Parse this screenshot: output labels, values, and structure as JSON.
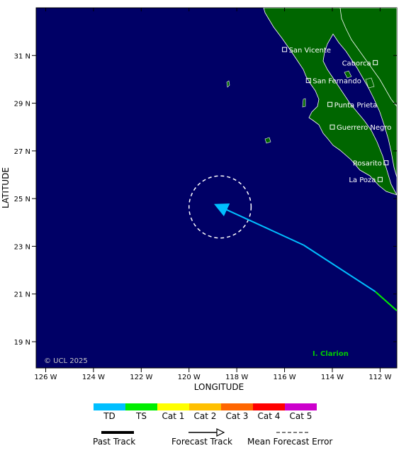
{
  "map": {
    "xlabel": "LONGITUDE",
    "ylabel": "LATITUDE",
    "copyright": "© UCL 2025",
    "ocean_color": "#000066",
    "land_color": "#006600",
    "lon_ticks": [
      {
        "value": -126,
        "label": "126 W"
      },
      {
        "value": -124,
        "label": "124 W"
      },
      {
        "value": -122,
        "label": "122 W"
      },
      {
        "value": -120,
        "label": "120 W"
      },
      {
        "value": -118,
        "label": "118 W"
      },
      {
        "value": -116,
        "label": "116 W"
      },
      {
        "value": -114,
        "label": "114 W"
      },
      {
        "value": -112,
        "label": "112 W"
      }
    ],
    "lat_ticks": [
      {
        "value": 19,
        "label": "19 N"
      },
      {
        "value": 21,
        "label": "21 N"
      },
      {
        "value": 23,
        "label": "23 N"
      },
      {
        "value": 25,
        "label": "25 N"
      },
      {
        "value": 27,
        "label": "27 N"
      },
      {
        "value": 29,
        "label": "29 N"
      },
      {
        "value": 31,
        "label": "31 N"
      }
    ],
    "cities": [
      {
        "name": "San Vicente",
        "lon": -116.0,
        "lat": 31.25
      },
      {
        "name": "Caborca",
        "lon": -112.2,
        "lat": 30.7
      },
      {
        "name": "San Fernando",
        "lon": -115.0,
        "lat": 29.95
      },
      {
        "name": "Punta Prieta",
        "lon": -114.1,
        "lat": 28.95
      },
      {
        "name": "Guerrero Negro",
        "lon": -114.0,
        "lat": 28.0
      },
      {
        "name": "Rosarito",
        "lon": -111.75,
        "lat": 26.5
      },
      {
        "name": "La Poza",
        "lon": -112.0,
        "lat": 25.8
      }
    ],
    "island": {
      "name": "I. Clarion",
      "lon": -114.0,
      "lat": 18.4
    }
  },
  "storm": {
    "track": [
      {
        "lon": -111.3,
        "lat": 20.3,
        "category": "Cat 1"
      },
      {
        "lon": -112.2,
        "lat": 21.1,
        "category": "TS"
      },
      {
        "lon": -115.2,
        "lat": 23.05,
        "category": "TD"
      },
      {
        "lon": -118.9,
        "lat": 24.75,
        "category": "TD"
      }
    ],
    "forecast_error_center": {
      "lon": -118.7,
      "lat": 24.65
    },
    "forecast_error_radius_deg": 1.3
  },
  "legend": {
    "categories": [
      {
        "label": "TD",
        "color": "#00bfff"
      },
      {
        "label": "TS",
        "color": "#00ee00"
      },
      {
        "label": "Cat 1",
        "color": "#ffff00"
      },
      {
        "label": "Cat 2",
        "color": "#ffc000"
      },
      {
        "label": "Cat 3",
        "color": "#ff6600"
      },
      {
        "label": "Cat 4",
        "color": "#ff0000"
      },
      {
        "label": "Cat 5",
        "color": "#cc00cc"
      }
    ],
    "past_track_label": "Past Track",
    "forecast_track_label": "Forecast Track",
    "error_label": "Mean Forecast Error"
  }
}
